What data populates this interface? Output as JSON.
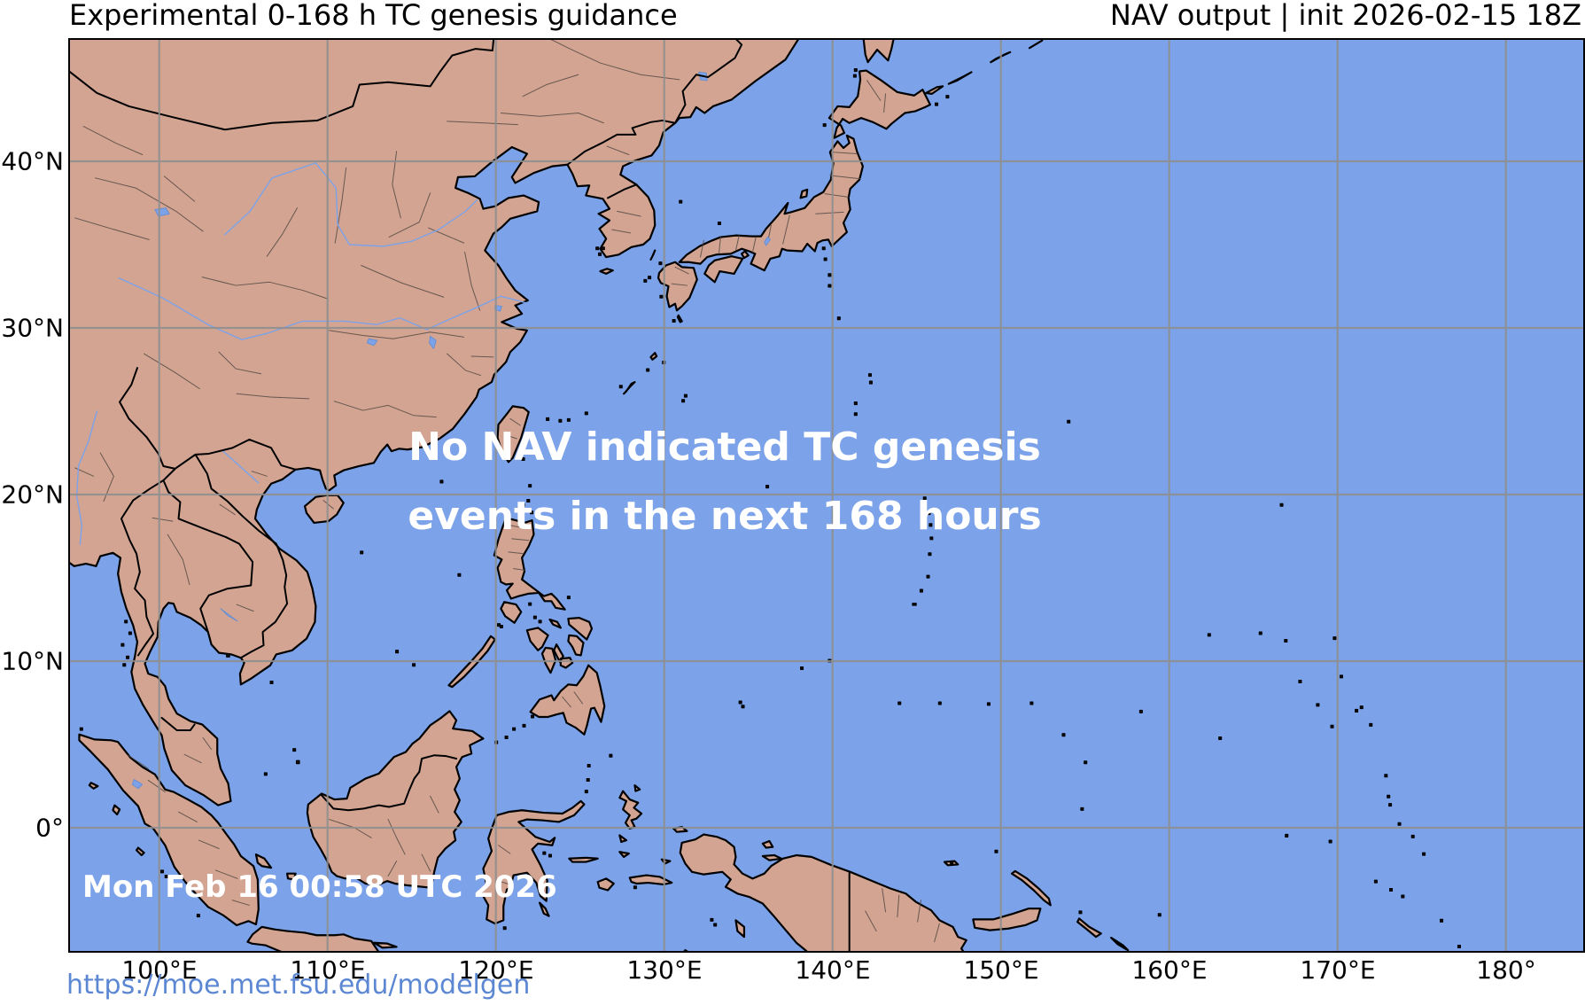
{
  "header": {
    "title_left": "Experimental 0-168 h TC genesis guidance",
    "title_right": "NAV output | init 2026-02-15 18Z"
  },
  "overlay": {
    "line1": "No NAV indicated TC genesis",
    "line2": "events in the next 168 hours",
    "timestamp": "Mon Feb 16 00:58 UTC 2026"
  },
  "axes": {
    "x_ticks": [
      {
        "label": "100°E",
        "pos": 180
      },
      {
        "label": "110°E",
        "pos": 370
      },
      {
        "label": "120°E",
        "pos": 560
      },
      {
        "label": "130°E",
        "pos": 750
      },
      {
        "label": "140°E",
        "pos": 940
      },
      {
        "label": "150°E",
        "pos": 1130
      },
      {
        "label": "160°E",
        "pos": 1320
      },
      {
        "label": "170°E",
        "pos": 1510
      },
      {
        "label": "180°",
        "pos": 1700
      }
    ],
    "y_ticks": [
      {
        "label": "40°N",
        "pos": 182
      },
      {
        "label": "30°N",
        "pos": 370
      },
      {
        "label": "20°N",
        "pos": 558
      },
      {
        "label": "10°N",
        "pos": 746
      },
      {
        "label": "0°",
        "pos": 934
      }
    ]
  },
  "footer": {
    "url": "https://moe.met.fsu.edu/modelgen"
  },
  "colors": {
    "ocean": "#7ca3e9",
    "land": "#d3a492",
    "grid": "#8e8e8e",
    "coast": "#000000",
    "link_blue": "#5c87d3",
    "overlay_text": "#ffffff"
  }
}
